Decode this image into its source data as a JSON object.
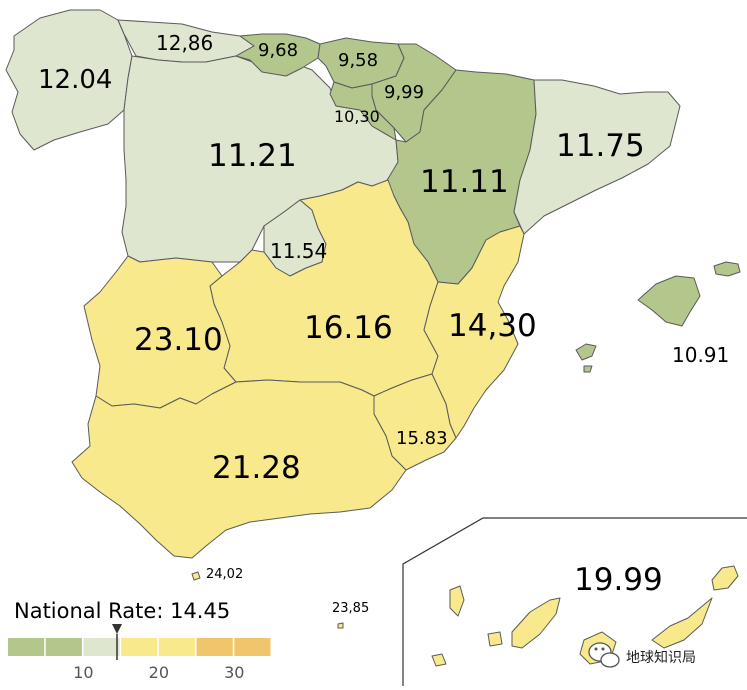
{
  "colors": {
    "green_dark": "#b3c68c",
    "green_light": "#dfe6cf",
    "yellow": "#f7e98c",
    "orange": "#f1c56b",
    "border": "#5a5a5a",
    "background": "#ffffff"
  },
  "regions": [
    {
      "id": "galicia",
      "value": "12.04"
    },
    {
      "id": "asturias",
      "value": "12,86"
    },
    {
      "id": "cantabria",
      "value": "9,68"
    },
    {
      "id": "basque",
      "value": "9,58"
    },
    {
      "id": "navarra",
      "value": "9,99"
    },
    {
      "id": "la-rioja",
      "value": "10,30"
    },
    {
      "id": "castilla-leon",
      "value": "11.21"
    },
    {
      "id": "aragon",
      "value": "11.11"
    },
    {
      "id": "catalonia",
      "value": "11.75"
    },
    {
      "id": "madrid",
      "value": "11.54"
    },
    {
      "id": "extremadura",
      "value": "23.10"
    },
    {
      "id": "castilla-la-mancha",
      "value": "16.16"
    },
    {
      "id": "valencia",
      "value": "14,30"
    },
    {
      "id": "balearic",
      "value": "10.91"
    },
    {
      "id": "murcia",
      "value": "15.83"
    },
    {
      "id": "andalusia",
      "value": "21.28"
    },
    {
      "id": "ceuta",
      "value": "24,02"
    },
    {
      "id": "melilla",
      "value": "23,85"
    },
    {
      "id": "canary",
      "value": "19.99"
    }
  ],
  "legend": {
    "title": "National Rate: 14.45",
    "national_rate": 14.45,
    "scale_min": 0,
    "scale_max": 35,
    "ticks": [
      "10",
      "20",
      "30"
    ],
    "bins": [
      {
        "from": 0,
        "to": 10,
        "color": "#b3c68c"
      },
      {
        "from": 10,
        "to": 15,
        "color": "#dfe6cf"
      },
      {
        "from": 15,
        "to": 25,
        "color": "#f7e98c"
      },
      {
        "from": 25,
        "to": 35,
        "color": "#f1c56b"
      }
    ]
  },
  "watermark": {
    "text": "地球知识局",
    "icon": "wechat-icon"
  }
}
